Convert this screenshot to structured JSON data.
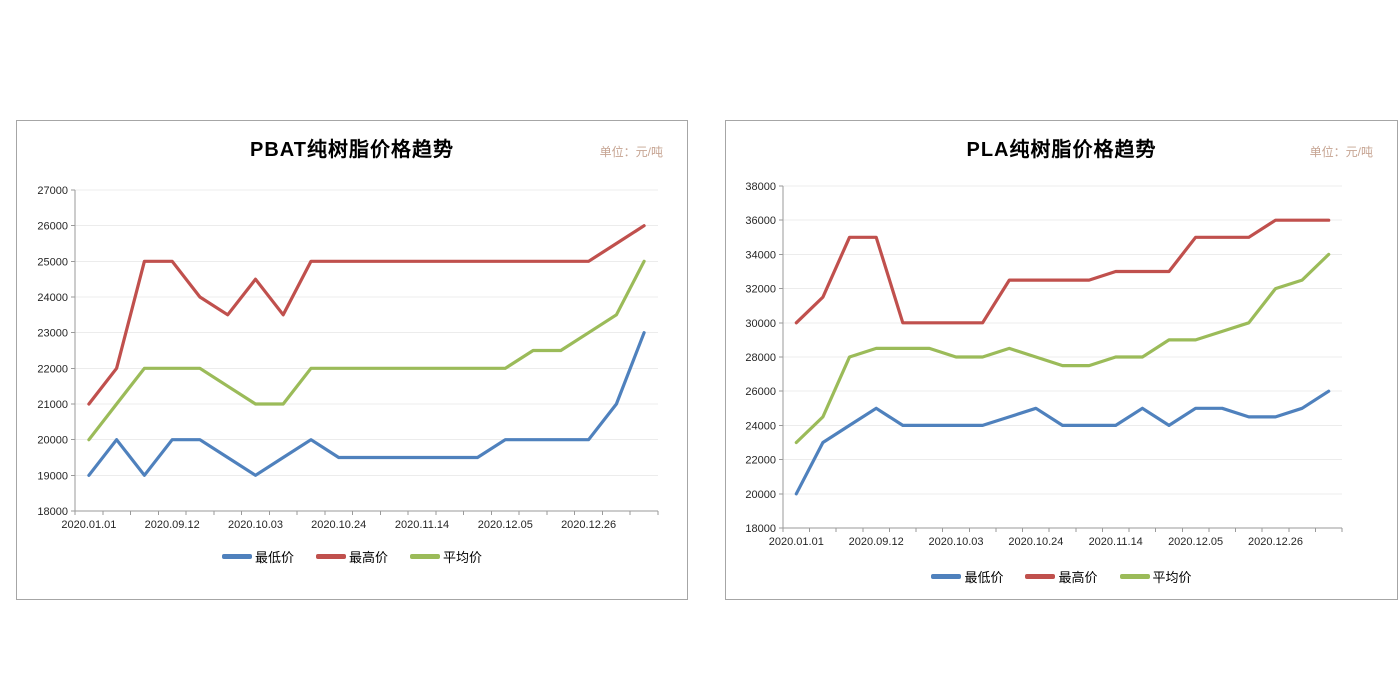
{
  "page": {
    "background": "#ffffff"
  },
  "styles": {
    "axis_color": "#9a9a9a",
    "grid_color": "#ececec",
    "label_color": "#262626",
    "title_color": "#000000",
    "unit_color": "#c6a492",
    "panel_border": "#a6a6a6",
    "series_blue": "#4f81bd",
    "series_red": "#c0504d",
    "series_green": "#9bbb59"
  },
  "chart_data": [
    {
      "type": "line",
      "title": "PBAT纯树脂价格趋势",
      "unit_label": "单位：元/吨",
      "n_points": 21,
      "x_tick_interval": 3,
      "x_tick_labels": [
        "2020.01.01",
        "2020.09.12",
        "2020.10.03",
        "2020.10.24",
        "2020.11.14",
        "2020.12.05",
        "2020.12.26"
      ],
      "ylim": [
        18000,
        27000
      ],
      "y_step": 1000,
      "grid": true,
      "legend_position": "bottom",
      "series": [
        {
          "name": "最低价",
          "color": "#4f81bd",
          "values": [
            19000,
            20000,
            19000,
            20000,
            20000,
            19500,
            19000,
            19500,
            20000,
            19500,
            19500,
            19500,
            19500,
            19500,
            19500,
            20000,
            20000,
            20000,
            20000,
            21000,
            23000
          ]
        },
        {
          "name": "最高价",
          "color": "#c0504d",
          "values": [
            21000,
            22000,
            25000,
            25000,
            24000,
            23500,
            24500,
            23500,
            25000,
            25000,
            25000,
            25000,
            25000,
            25000,
            25000,
            25000,
            25000,
            25000,
            25000,
            25500,
            26000
          ]
        },
        {
          "name": "平均价",
          "color": "#9bbb59",
          "values": [
            20000,
            21000,
            22000,
            22000,
            22000,
            21500,
            21000,
            21000,
            22000,
            22000,
            22000,
            22000,
            22000,
            22000,
            22000,
            22000,
            22500,
            22500,
            23000,
            23500,
            25000
          ]
        }
      ]
    },
    {
      "type": "line",
      "title": "PLA纯树脂价格趋势",
      "unit_label": "单位：元/吨",
      "n_points": 21,
      "x_tick_interval": 3,
      "x_tick_labels": [
        "2020.01.01",
        "2020.09.12",
        "2020.10.03",
        "2020.10.24",
        "2020.11.14",
        "2020.12.05",
        "2020.12.26"
      ],
      "ylim": [
        18000,
        38000
      ],
      "y_step": 2000,
      "grid": true,
      "legend_position": "bottom",
      "series": [
        {
          "name": "最低价",
          "color": "#4f81bd",
          "values": [
            20000,
            23000,
            24000,
            25000,
            24000,
            24000,
            24000,
            24000,
            24500,
            25000,
            24000,
            24000,
            24000,
            25000,
            24000,
            25000,
            25000,
            24500,
            24500,
            25000,
            26000
          ]
        },
        {
          "name": "最高价",
          "color": "#c0504d",
          "values": [
            30000,
            31500,
            35000,
            35000,
            30000,
            30000,
            30000,
            30000,
            32500,
            32500,
            32500,
            32500,
            33000,
            33000,
            33000,
            35000,
            35000,
            35000,
            36000,
            36000,
            36000
          ]
        },
        {
          "name": "平均价",
          "color": "#9bbb59",
          "values": [
            23000,
            24500,
            28000,
            28500,
            28500,
            28500,
            28000,
            28000,
            28500,
            28000,
            27500,
            27500,
            28000,
            28000,
            29000,
            29000,
            29500,
            30000,
            32000,
            32500,
            34000
          ]
        }
      ]
    }
  ]
}
